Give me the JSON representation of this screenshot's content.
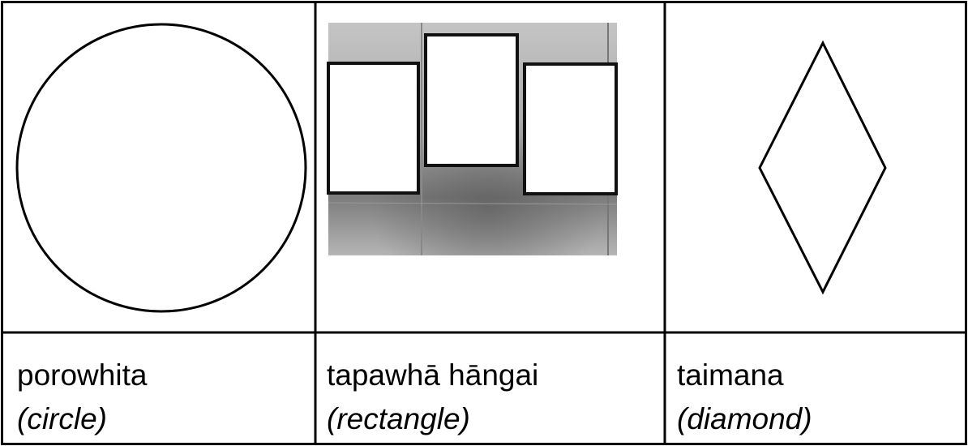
{
  "table": {
    "cells": [
      {
        "label": "porowhita",
        "translation": "(circle)"
      },
      {
        "label": "tapawhā hāngai",
        "translation": "(rectangle)"
      },
      {
        "label": "taimana",
        "translation": "(diamond)"
      }
    ]
  }
}
